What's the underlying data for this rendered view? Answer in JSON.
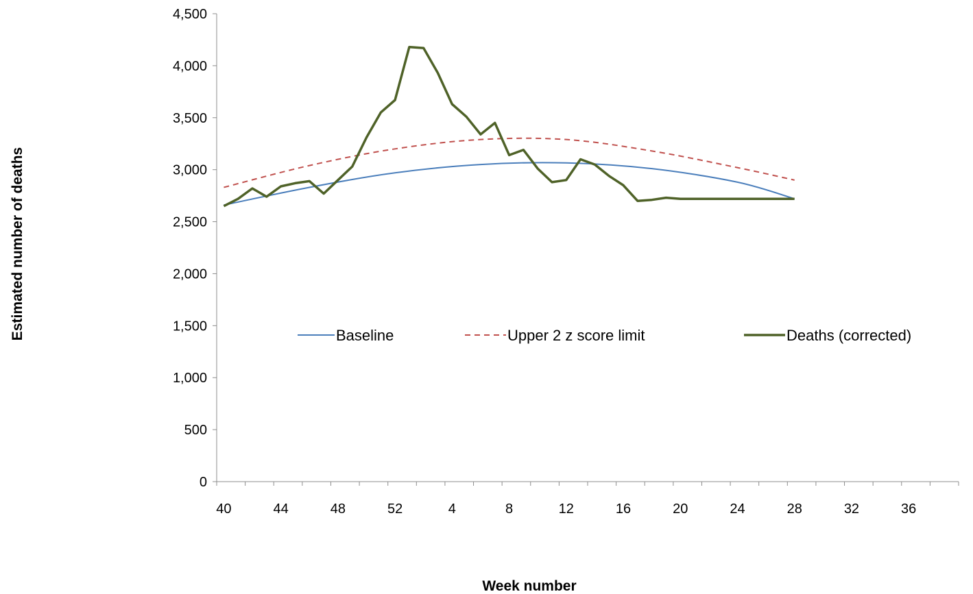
{
  "chart_data": {
    "type": "line",
    "title": "",
    "xlabel": "Week number",
    "ylabel": "Estimated number of deaths",
    "ylim": [
      0,
      4500
    ],
    "yticks": [
      "0",
      "500",
      "1,000",
      "1,500",
      "2,000",
      "2,500",
      "3,000",
      "3,500",
      "4,000",
      "4,500"
    ],
    "ytick_values": [
      0,
      500,
      1000,
      1500,
      2000,
      2500,
      3000,
      3500,
      4000,
      4500
    ],
    "xticks": [
      "40",
      "44",
      "48",
      "52",
      "4",
      "8",
      "12",
      "16",
      "20",
      "24",
      "28",
      "32",
      "36"
    ],
    "xtick_season_index": [
      0,
      4,
      8,
      12,
      16,
      20,
      24,
      28,
      32,
      36,
      40,
      44,
      48
    ],
    "x_season_range": [
      0,
      52
    ],
    "grid": false,
    "legend_placement": "center",
    "series": [
      {
        "name": "Baseline",
        "color": "#4a7ebb",
        "dash": "solid",
        "season_index": [
          0,
          6,
          12,
          18,
          24,
          30,
          36,
          40
        ],
        "values": [
          2660,
          2830,
          2970,
          3050,
          3065,
          3010,
          2880,
          2720
        ]
      },
      {
        "name": "Upper 2 z score limit",
        "color": "#c0504d",
        "dash": "dashed",
        "season_index": [
          0,
          6,
          12,
          18,
          24,
          30,
          36,
          40
        ],
        "values": [
          2830,
          3040,
          3200,
          3290,
          3290,
          3180,
          3020,
          2900
        ]
      },
      {
        "name": "Deaths (corrected)",
        "color": "#4f6228",
        "dash": "solid",
        "season_index": [
          0,
          1,
          2,
          3,
          4,
          5,
          6,
          7,
          8,
          9,
          10,
          11,
          12,
          13,
          14,
          15,
          16,
          17,
          18,
          19,
          20,
          21,
          22,
          23,
          24,
          25,
          26,
          27,
          28,
          29,
          30,
          31,
          32,
          33,
          34,
          35,
          36,
          37,
          38,
          39,
          40
        ],
        "values": [
          2650,
          2720,
          2820,
          2740,
          2840,
          2870,
          2890,
          2770,
          2900,
          3030,
          3310,
          3550,
          3670,
          4180,
          4170,
          3930,
          3630,
          3510,
          3340,
          3450,
          3140,
          3190,
          3010,
          2880,
          2900,
          3100,
          3050,
          2940,
          2850,
          2700,
          2710,
          2730,
          2720,
          2720,
          2720,
          2720,
          2720,
          2720,
          2720,
          2720,
          2720
        ]
      }
    ]
  }
}
